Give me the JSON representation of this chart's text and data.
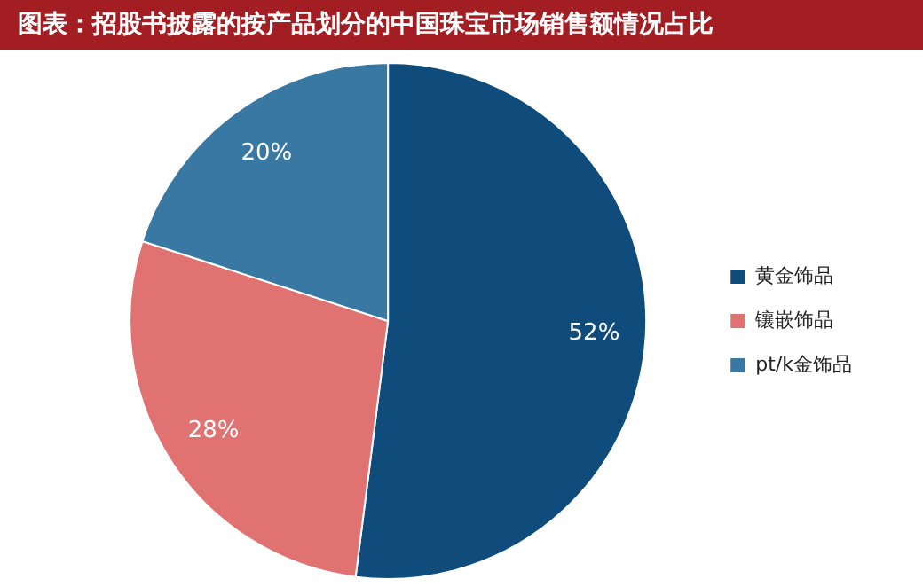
{
  "chart_data": {
    "type": "pie",
    "title": "图表：招股书披露的按产品划分的中国珠宝市场销售额情况占比",
    "categories": [
      "黄金饰品",
      "镶嵌饰品",
      "pt/k金饰品"
    ],
    "values": [
      52,
      28,
      20
    ],
    "colors": [
      "#0f4c7c",
      "#e07272",
      "#3a78a4"
    ],
    "value_labels": [
      "52%",
      "28%",
      "20%"
    ],
    "legend": "right"
  }
}
